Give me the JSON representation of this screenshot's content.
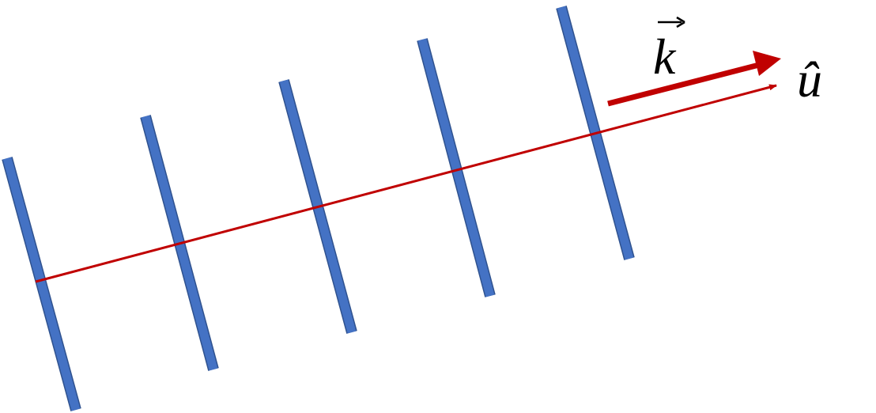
{
  "labels": {
    "wave_vector": "k",
    "unit_vector": "û"
  }
}
